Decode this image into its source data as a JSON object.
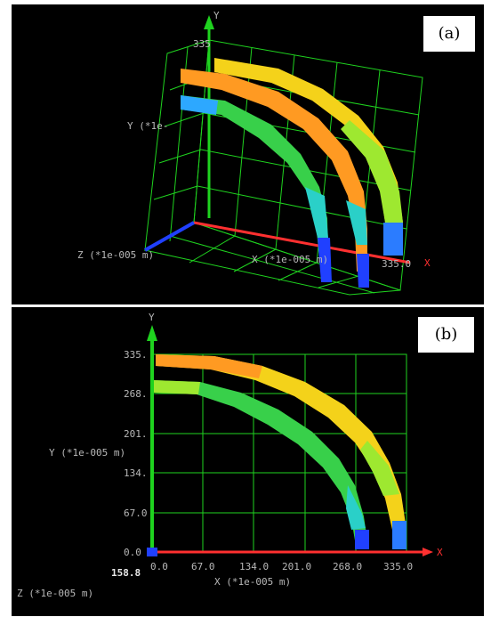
{
  "panel_a": {
    "tag": "(a)",
    "axis_y": "Y",
    "axis_x": "X",
    "y_tick_top": "335",
    "y_label": "Y (*1e-",
    "z_label": "Z (*1e-005 m)",
    "x_label": "X (*1e-005 m)",
    "x_end": "335.0"
  },
  "panel_b": {
    "tag": "(b)",
    "axis_y": "Y",
    "axis_x": "X",
    "y_label": "Y (*1e-005 m)",
    "x_label": "X (*1e-005 m)",
    "z_tick": "158.8",
    "z_label": "Z (*1e-005 m)",
    "y_ticks": [
      "335.",
      "268.",
      "201.",
      "134.",
      "67.0",
      "0.0"
    ],
    "x_ticks": [
      "0.0",
      "67.0",
      "134.0",
      "201.0",
      "268.0",
      "335.0"
    ]
  },
  "colors": {
    "grid": "#1fd31f",
    "x_axis": "#ff3030",
    "z_axis": "#2040ff",
    "band_outer": "#f4d21a",
    "band_mid": "#ff9a22",
    "band_inner": "#38d04a"
  }
}
